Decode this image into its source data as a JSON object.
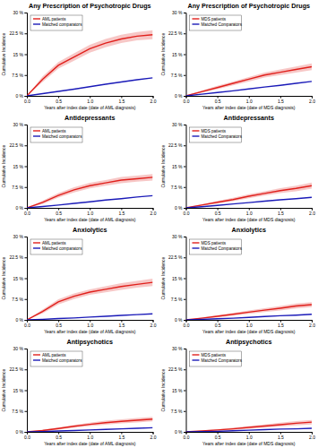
{
  "chart_data": [
    {
      "type": "line",
      "title": "Any Prescription of Psychotropic Drugs",
      "x_label": "Years after index date (date of AML diagnosis)",
      "y_label": "Cumulative Incidence",
      "x": [
        0,
        0.25,
        0.5,
        0.75,
        1.0,
        1.25,
        1.5,
        1.75,
        2.0
      ],
      "xlim": [
        0,
        2
      ],
      "ylim": [
        0,
        30
      ],
      "xticks": [
        {
          "value": 0,
          "label": "0.0"
        },
        {
          "value": 0.5,
          "label": "0.5"
        },
        {
          "value": 1,
          "label": "1.0"
        },
        {
          "value": 1.5,
          "label": "1.5"
        },
        {
          "value": 2,
          "label": "2.0"
        }
      ],
      "yticks": [
        {
          "value": 0,
          "label": "0 %"
        },
        {
          "value": 7.5,
          "label": "7.5 %"
        },
        {
          "value": 15,
          "label": "15 %"
        },
        {
          "value": 22.5,
          "label": "22.5 %"
        },
        {
          "value": 30,
          "label": "30 %"
        }
      ],
      "grid": false,
      "legend": "upper left",
      "series": [
        {
          "name": "AML patients",
          "color": "#e0201c",
          "values": [
            0,
            6,
            11,
            14,
            17,
            19,
            20.5,
            21.5,
            22
          ],
          "lower": [
            0,
            5,
            9.8,
            12.7,
            15.6,
            17.5,
            19,
            20,
            20.4
          ],
          "upper": [
            0,
            7,
            12.2,
            15.3,
            18.4,
            20.5,
            22,
            23,
            23.6
          ]
        },
        {
          "name": "Matched comparators",
          "color": "#1a1ab8",
          "values": [
            0,
            0.8,
            1.6,
            2.4,
            3.3,
            4.2,
            5.0,
            5.8,
            6.5
          ]
        }
      ]
    },
    {
      "type": "line",
      "title": "Any Prescription of Psychotropic Drugs",
      "x_label": "Years after index date (date of MDS diagnosis)",
      "y_label": "Cumulative Incidence",
      "x": [
        0,
        0.25,
        0.5,
        0.75,
        1.0,
        1.25,
        1.5,
        1.75,
        2.0
      ],
      "xlim": [
        0,
        2
      ],
      "ylim": [
        0,
        30
      ],
      "xticks": [
        {
          "value": 0,
          "label": "0.0"
        },
        {
          "value": 0.5,
          "label": "0.5"
        },
        {
          "value": 1,
          "label": "1.0"
        },
        {
          "value": 1.5,
          "label": "1.5"
        },
        {
          "value": 2,
          "label": "2.0"
        }
      ],
      "yticks": [
        {
          "value": 0,
          "label": "0 %"
        },
        {
          "value": 7.5,
          "label": "7.5 %"
        },
        {
          "value": 15,
          "label": "15 %"
        },
        {
          "value": 22.5,
          "label": "22.5 %"
        },
        {
          "value": 30,
          "label": "30 %"
        }
      ],
      "grid": false,
      "legend": "upper left",
      "series": [
        {
          "name": "MDS patients",
          "color": "#e0201c",
          "values": [
            0,
            1.5,
            3,
            4.5,
            6,
            7.5,
            8.5,
            9.5,
            10.5
          ],
          "lower": [
            0,
            1.1,
            2.4,
            3.8,
            5.2,
            6.6,
            7.5,
            8.4,
            9.3
          ],
          "upper": [
            0,
            1.9,
            3.6,
            5.2,
            6.8,
            8.4,
            9.5,
            10.6,
            11.7
          ]
        },
        {
          "name": "Matched Comparators",
          "color": "#1a1ab8",
          "values": [
            0,
            0.6,
            1.2,
            1.8,
            2.5,
            3.2,
            3.8,
            4.5,
            5.2
          ]
        }
      ]
    },
    {
      "type": "line",
      "title": "Antidepressants",
      "x_label": "Years after index date (date of AML diagnosis)",
      "y_label": "Cumulative Incidence",
      "x": [
        0,
        0.25,
        0.5,
        0.75,
        1.0,
        1.25,
        1.5,
        1.75,
        2.0
      ],
      "xlim": [
        0,
        2
      ],
      "ylim": [
        0,
        30
      ],
      "xticks": [
        {
          "value": 0,
          "label": "0.0"
        },
        {
          "value": 0.5,
          "label": "0.5"
        },
        {
          "value": 1,
          "label": "1.0"
        },
        {
          "value": 1.5,
          "label": "1.5"
        },
        {
          "value": 2,
          "label": "2.0"
        }
      ],
      "yticks": [
        {
          "value": 0,
          "label": "0 %"
        },
        {
          "value": 7.5,
          "label": "7.5 %"
        },
        {
          "value": 15,
          "label": "15 %"
        },
        {
          "value": 22.5,
          "label": "22.5 %"
        },
        {
          "value": 30,
          "label": "30 %"
        }
      ],
      "grid": false,
      "legend": "upper left",
      "series": [
        {
          "name": "AML patients",
          "color": "#e0201c",
          "values": [
            0,
            2,
            4.5,
            6.5,
            8,
            9,
            10,
            10.5,
            11
          ],
          "lower": [
            0,
            1.4,
            3.7,
            5.6,
            7,
            8,
            8.9,
            9.4,
            9.8
          ],
          "upper": [
            0,
            2.6,
            5.3,
            7.4,
            9,
            10,
            11.1,
            11.6,
            12.2
          ]
        },
        {
          "name": "Matched comparators",
          "color": "#1a1ab8",
          "values": [
            0,
            0.5,
            1,
            1.6,
            2.2,
            2.8,
            3.3,
            3.9,
            4.4
          ]
        }
      ]
    },
    {
      "type": "line",
      "title": "Antidepressants",
      "x_label": "Years after index date (date of MDS diagnosis)",
      "y_label": "Cumulative Incidence",
      "x": [
        0,
        0.25,
        0.5,
        0.75,
        1.0,
        1.25,
        1.5,
        1.75,
        2.0
      ],
      "xlim": [
        0,
        2
      ],
      "ylim": [
        0,
        30
      ],
      "xticks": [
        {
          "value": 0,
          "label": "0.0"
        },
        {
          "value": 0.5,
          "label": "0.5"
        },
        {
          "value": 1,
          "label": "1.0"
        },
        {
          "value": 1.5,
          "label": "1.5"
        },
        {
          "value": 2,
          "label": "2.0"
        }
      ],
      "yticks": [
        {
          "value": 0,
          "label": "0 %"
        },
        {
          "value": 7.5,
          "label": "7.5 %"
        },
        {
          "value": 15,
          "label": "15 %"
        },
        {
          "value": 22.5,
          "label": "22.5 %"
        },
        {
          "value": 30,
          "label": "30 %"
        }
      ],
      "grid": false,
      "legend": "upper left",
      "series": [
        {
          "name": "MDS patients",
          "color": "#e0201c",
          "values": [
            0,
            1,
            2,
            3,
            4.2,
            5.2,
            6.2,
            7,
            8
          ],
          "lower": [
            0,
            0.7,
            1.5,
            2.4,
            3.5,
            4.4,
            5.3,
            6,
            6.9
          ],
          "upper": [
            0,
            1.3,
            2.5,
            3.6,
            4.9,
            6,
            7.1,
            8,
            9.1
          ]
        },
        {
          "name": "Matched Comparators",
          "color": "#1a1ab8",
          "values": [
            0,
            0.4,
            0.9,
            1.4,
            1.9,
            2.4,
            2.9,
            3.3,
            3.8
          ]
        }
      ]
    },
    {
      "type": "line",
      "title": "Anxiolytics",
      "x_label": "Years after index date (date of AML diagnosis)",
      "y_label": "Cumulative Incidence",
      "x": [
        0,
        0.25,
        0.5,
        0.75,
        1.0,
        1.25,
        1.5,
        1.75,
        2.0
      ],
      "xlim": [
        0,
        2
      ],
      "ylim": [
        0,
        30
      ],
      "xticks": [
        {
          "value": 0,
          "label": "0.0"
        },
        {
          "value": 0.5,
          "label": "0.5"
        },
        {
          "value": 1,
          "label": "1.0"
        },
        {
          "value": 1.5,
          "label": "1.5"
        },
        {
          "value": 2,
          "label": "2.0"
        }
      ],
      "yticks": [
        {
          "value": 0,
          "label": "0 %"
        },
        {
          "value": 7.5,
          "label": "7.5 %"
        },
        {
          "value": 15,
          "label": "15 %"
        },
        {
          "value": 22.5,
          "label": "22.5 %"
        },
        {
          "value": 30,
          "label": "30 %"
        }
      ],
      "grid": false,
      "legend": "upper left",
      "series": [
        {
          "name": "AML patients",
          "color": "#e0201c",
          "values": [
            0,
            3,
            6.5,
            8.5,
            10,
            11,
            12,
            12.8,
            13.5
          ],
          "lower": [
            0,
            2.3,
            5.6,
            7.5,
            9,
            9.9,
            10.8,
            11.6,
            12.2
          ],
          "upper": [
            0,
            3.7,
            7.4,
            9.5,
            11,
            12.1,
            13.2,
            14,
            14.8
          ]
        },
        {
          "name": "Matched comparators",
          "color": "#1a1ab8",
          "values": [
            0,
            0.2,
            0.5,
            0.7,
            1.0,
            1.3,
            1.6,
            1.9,
            2.2
          ]
        }
      ]
    },
    {
      "type": "line",
      "title": "Anxiolytics",
      "x_label": "Years after index date (date of MDS diagnosis)",
      "y_label": "Cumulative Incidence",
      "x": [
        0,
        0.25,
        0.5,
        0.75,
        1.0,
        1.25,
        1.5,
        1.75,
        2.0
      ],
      "xlim": [
        0,
        2
      ],
      "ylim": [
        0,
        30
      ],
      "xticks": [
        {
          "value": 0,
          "label": "0.0"
        },
        {
          "value": 0.5,
          "label": "0.5"
        },
        {
          "value": 1,
          "label": "1.0"
        },
        {
          "value": 1.5,
          "label": "1.5"
        },
        {
          "value": 2,
          "label": "2.0"
        }
      ],
      "yticks": [
        {
          "value": 0,
          "label": "0 %"
        },
        {
          "value": 7.5,
          "label": "7.5 %"
        },
        {
          "value": 15,
          "label": "15 %"
        },
        {
          "value": 22.5,
          "label": "22.5 %"
        },
        {
          "value": 30,
          "label": "30 %"
        }
      ],
      "grid": false,
      "legend": "upper left",
      "series": [
        {
          "name": "MDS patients",
          "color": "#e0201c",
          "values": [
            0,
            0.6,
            1.3,
            2,
            2.8,
            3.5,
            4.2,
            5,
            5.5
          ],
          "lower": [
            0,
            0.4,
            0.9,
            1.5,
            2.2,
            2.8,
            3.4,
            4.1,
            4.6
          ],
          "upper": [
            0,
            0.8,
            1.7,
            2.5,
            3.4,
            4.2,
            5,
            5.9,
            6.4
          ]
        },
        {
          "name": "Matched Comparators",
          "color": "#1a1ab8",
          "values": [
            0,
            0.2,
            0.4,
            0.6,
            0.9,
            1.2,
            1.5,
            1.7,
            2.0
          ]
        }
      ]
    },
    {
      "type": "line",
      "title": "Antipsychotics",
      "x_label": "Years after index date (date of AML diagnosis)",
      "y_label": "Cumulative Incidence",
      "x": [
        0,
        0.25,
        0.5,
        0.75,
        1.0,
        1.25,
        1.5,
        1.75,
        2.0
      ],
      "xlim": [
        0,
        2
      ],
      "ylim": [
        0,
        30
      ],
      "xticks": [
        {
          "value": 0,
          "label": "0.0"
        },
        {
          "value": 0.5,
          "label": "0.5"
        },
        {
          "value": 1,
          "label": "1.0"
        },
        {
          "value": 1.5,
          "label": "1.5"
        },
        {
          "value": 2,
          "label": "2.0"
        }
      ],
      "yticks": [
        {
          "value": 0,
          "label": "0 %"
        },
        {
          "value": 7.5,
          "label": "7.5 %"
        },
        {
          "value": 15,
          "label": "15 %"
        },
        {
          "value": 22.5,
          "label": "22.5 %"
        },
        {
          "value": 30,
          "label": "30 %"
        }
      ],
      "grid": false,
      "legend": "upper left",
      "series": [
        {
          "name": "AML patients",
          "color": "#e0201c",
          "values": [
            0,
            0.5,
            1.2,
            2,
            2.7,
            3.3,
            3.8,
            4.2,
            4.6
          ],
          "lower": [
            0,
            0.2,
            0.8,
            1.5,
            2.1,
            2.6,
            3.1,
            3.4,
            3.8
          ],
          "upper": [
            0,
            0.8,
            1.6,
            2.5,
            3.3,
            4,
            4.5,
            5,
            5.4
          ]
        },
        {
          "name": "Matched comparators",
          "color": "#1a1ab8",
          "values": [
            0,
            0.1,
            0.3,
            0.5,
            0.7,
            0.9,
            1.1,
            1.3,
            1.5
          ]
        }
      ]
    },
    {
      "type": "line",
      "title": "Antipsychotics",
      "x_label": "Years after index date (date of MDS diagnosis)",
      "y_label": "Cumulative Incidence",
      "x": [
        0,
        0.25,
        0.5,
        0.75,
        1.0,
        1.25,
        1.5,
        1.75,
        2.0
      ],
      "xlim": [
        0,
        2
      ],
      "ylim": [
        0,
        30
      ],
      "xticks": [
        {
          "value": 0,
          "label": "0.0"
        },
        {
          "value": 0.5,
          "label": "0.5"
        },
        {
          "value": 1,
          "label": "1.0"
        },
        {
          "value": 1.5,
          "label": "1.5"
        },
        {
          "value": 2,
          "label": "2.0"
        }
      ],
      "yticks": [
        {
          "value": 0,
          "label": "0 %"
        },
        {
          "value": 7.5,
          "label": "7.5 %"
        },
        {
          "value": 15,
          "label": "15 %"
        },
        {
          "value": 22.5,
          "label": "22.5 %"
        },
        {
          "value": 30,
          "label": "30 %"
        }
      ],
      "grid": false,
      "legend": "upper left",
      "series": [
        {
          "name": "MDS patients",
          "color": "#e0201c",
          "values": [
            0,
            0.3,
            0.7,
            1.1,
            1.6,
            2.1,
            2.6,
            3.1,
            3.5
          ],
          "lower": [
            0,
            0.1,
            0.4,
            0.7,
            1.1,
            1.5,
            1.9,
            2.3,
            2.7
          ],
          "upper": [
            0,
            0.5,
            1,
            1.5,
            2.1,
            2.7,
            3.3,
            3.9,
            4.3
          ]
        },
        {
          "name": "Matched Comparators",
          "color": "#1a1ab8",
          "values": [
            0,
            0.1,
            0.2,
            0.4,
            0.6,
            0.8,
            1.0,
            1.1,
            1.3
          ]
        }
      ]
    }
  ]
}
